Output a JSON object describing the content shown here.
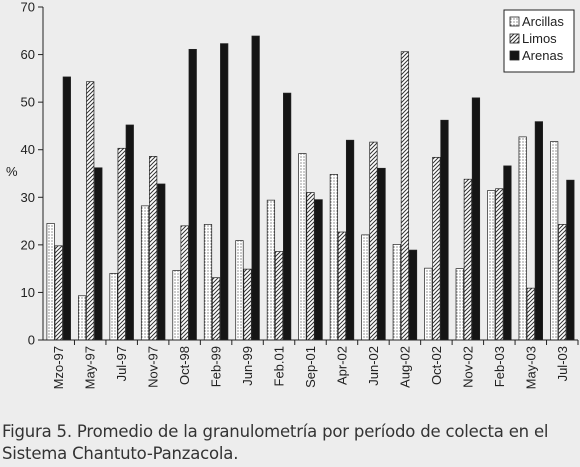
{
  "chart_data": {
    "type": "bar",
    "categories": [
      "Mzo-97",
      "May-97",
      "Jul-97",
      "Nov-97",
      "Oct-98",
      "Feb-99",
      "Jun-99",
      "Feb.01",
      "Sep-01",
      "Apr-02",
      "Jun-02",
      "Aug-02",
      "Oct-02",
      "Nov-02",
      "Feb-03",
      "May-03",
      "Jul-03"
    ],
    "series": [
      {
        "name": "Arcillas",
        "pattern": "dots",
        "values": [
          24.5,
          9.3,
          14.0,
          28.2,
          14.6,
          24.3,
          20.9,
          29.4,
          39.2,
          34.8,
          22.1,
          20.1,
          15.1,
          15.0,
          31.4,
          42.7,
          41.7
        ]
      },
      {
        "name": "Limos",
        "pattern": "diagonal",
        "values": [
          19.8,
          54.3,
          40.3,
          38.6,
          24.0,
          13.1,
          14.9,
          18.6,
          31.0,
          22.7,
          41.6,
          60.6,
          38.4,
          33.8,
          31.8,
          10.9,
          24.3
        ]
      },
      {
        "name": "Arenas",
        "pattern": "solid",
        "values": [
          55.3,
          36.2,
          45.2,
          32.8,
          61.1,
          62.3,
          63.9,
          51.9,
          29.5,
          42.0,
          36.1,
          18.9,
          46.2,
          50.9,
          36.6,
          45.9,
          33.6
        ]
      }
    ],
    "ylabel": "%",
    "ylim": [
      0,
      70
    ],
    "yticks": [
      0,
      10,
      20,
      30,
      40,
      50,
      60,
      70
    ],
    "legend_position": "top-right",
    "grid": false
  },
  "caption": {
    "line1": "Figura 5. Promedio de la granulometría por período de colecta en el",
    "line2": "Sistema Chantuto-Panzacola."
  }
}
